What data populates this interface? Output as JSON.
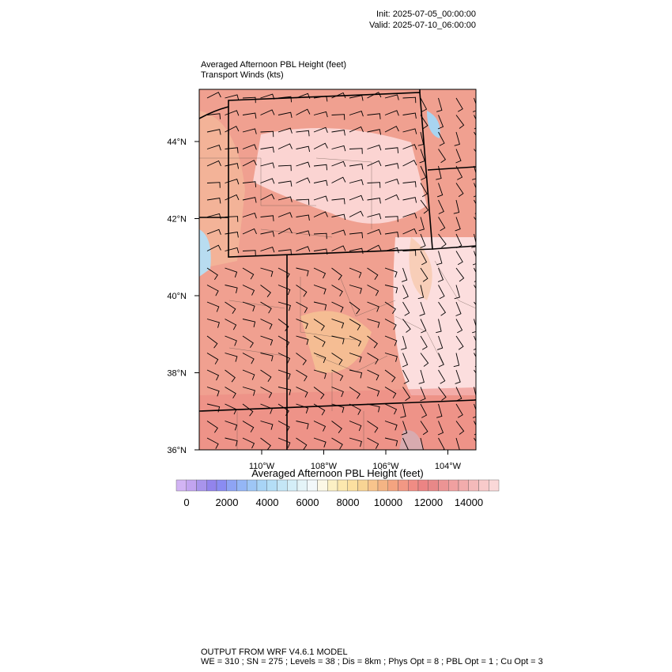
{
  "header": {
    "init": "Init: 2025-07-05_00:00:00",
    "valid": "Valid: 2025-07-10_06:00:00"
  },
  "map": {
    "title": "Averaged Afternoon PBL Height   (feet)",
    "subtitle": "Transport Winds   (kts)",
    "lat_labels": [
      {
        "value": 44,
        "label": "44°N"
      },
      {
        "value": 42,
        "label": "42°N"
      },
      {
        "value": 40,
        "label": "40°N"
      },
      {
        "value": 38,
        "label": "38°N"
      },
      {
        "value": 36,
        "label": "36°N"
      }
    ],
    "lon_labels": [
      {
        "value": -110,
        "label": "110°W"
      },
      {
        "value": -108,
        "label": "108°W"
      },
      {
        "value": -106,
        "label": "106°W"
      },
      {
        "value": -104,
        "label": "104°W"
      }
    ]
  },
  "colorbar": {
    "title": "Averaged Afternoon PBL Height  (feet)",
    "ticks": [
      0,
      2000,
      4000,
      6000,
      8000,
      10000,
      12000,
      14000
    ],
    "colors": [
      "#d2b4f4",
      "#c2a4f0",
      "#a894ec",
      "#9284ec",
      "#8a8cf2",
      "#8ea4f4",
      "#94b6f6",
      "#9ec6f6",
      "#a8d4f6",
      "#b4def6",
      "#c4e6f6",
      "#d4eef8",
      "#e4f4f8",
      "#f2f8fa",
      "#fcf8e6",
      "#fcf0c4",
      "#fce8ae",
      "#fce0a0",
      "#f8d494",
      "#f8c48c",
      "#f4b484",
      "#f4a480",
      "#f29884",
      "#f08c84",
      "#ec8484",
      "#e88888",
      "#ec9494",
      "#f0a0a0",
      "#f2acac",
      "#f4baba",
      "#f8caca",
      "#fad8d8"
    ]
  },
  "footer": {
    "line1": "OUTPUT FROM WRF V4.6.1 MODEL",
    "line2": "WE = 310 ; SN = 275 ; Levels = 38 ; Dis = 8km ; Phys Opt = 8 ; PBL Opt = 1 ; Cu Opt = 3"
  }
}
